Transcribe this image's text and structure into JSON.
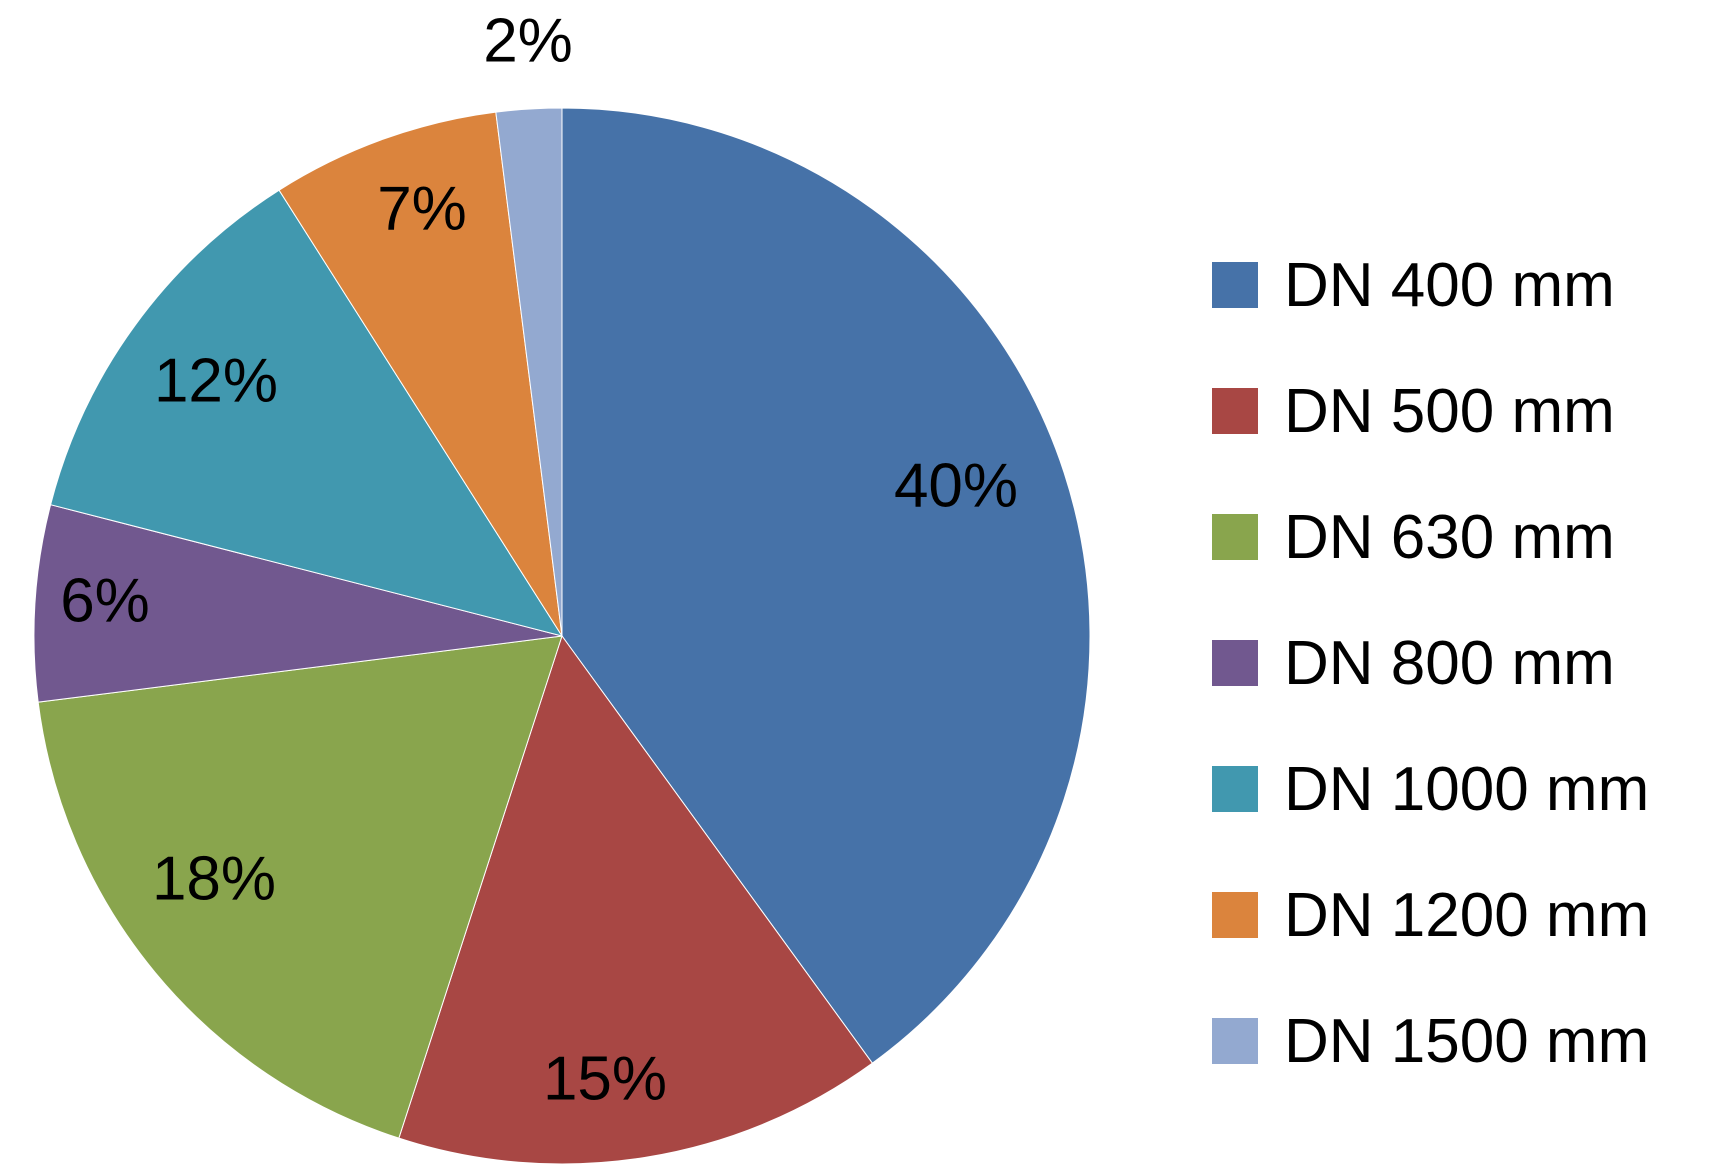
{
  "chart_data": {
    "type": "pie",
    "title": "",
    "start_angle_deg": 0,
    "direction": "clockwise",
    "legend_position": "right",
    "slices": [
      {
        "label": "DN 400 mm",
        "value": 40,
        "display": "40%",
        "color": "#4672A8"
      },
      {
        "label": "DN 500 mm",
        "value": 15,
        "display": "15%",
        "color": "#A84744"
      },
      {
        "label": "DN 630 mm",
        "value": 18,
        "display": "18%",
        "color": "#89A54D"
      },
      {
        "label": "DN 800 mm",
        "value": 6,
        "display": "6%",
        "color": "#71588F"
      },
      {
        "label": "DN 1000 mm",
        "value": 12,
        "display": "12%",
        "color": "#4198AF"
      },
      {
        "label": "DN 1200 mm",
        "value": 7,
        "display": "7%",
        "color": "#DB843D"
      },
      {
        "label": "DN 1500 mm",
        "value": 2,
        "display": "2%",
        "color": "#93A9D0"
      }
    ]
  }
}
